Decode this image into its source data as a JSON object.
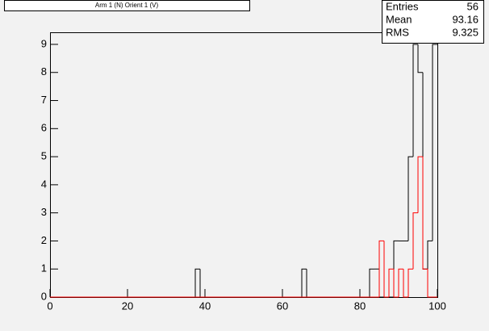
{
  "chart_data": {
    "type": "histogram",
    "title": "Arm 1 (N) Orient 1 (V)",
    "bins": [
      0,
      1.25,
      2.5,
      3.75,
      5,
      6.25,
      7.5,
      8.75,
      10,
      11.25,
      12.5,
      13.75,
      15,
      16.25,
      17.5,
      18.75,
      20,
      21.25,
      22.5,
      23.75,
      25,
      26.25,
      27.5,
      28.75,
      30,
      31.25,
      32.5,
      33.75,
      35,
      36.25,
      37.5,
      38.75,
      40,
      41.25,
      42.5,
      43.75,
      45,
      46.25,
      47.5,
      48.75,
      50,
      51.25,
      52.5,
      53.75,
      55,
      56.25,
      57.5,
      58.75,
      60,
      61.25,
      62.5,
      63.75,
      65,
      66.25,
      67.5,
      68.75,
      70,
      71.25,
      72.5,
      73.75,
      75,
      76.25,
      77.5,
      78.75,
      80,
      81.25,
      82.5,
      83.75,
      85,
      86.25,
      87.5,
      88.75,
      90,
      91.25,
      92.5,
      93.75,
      95,
      96.25,
      97.5,
      98.75,
      100
    ],
    "series": [
      {
        "color": "#000000",
        "values": [
          0,
          0,
          0,
          0,
          0,
          0,
          0,
          0,
          0,
          0,
          0,
          0,
          0,
          0,
          0,
          0,
          0,
          0,
          0,
          0,
          0,
          0,
          0,
          0,
          0,
          0,
          0,
          0,
          0,
          0,
          1,
          0,
          0,
          0,
          0,
          0,
          0,
          0,
          0,
          0,
          0,
          0,
          0,
          0,
          0,
          0,
          0,
          0,
          0,
          0,
          0,
          0,
          1,
          0,
          0,
          0,
          0,
          0,
          0,
          0,
          0,
          0,
          0,
          0,
          0,
          0,
          1,
          1,
          0,
          0,
          0,
          2,
          2,
          2,
          5,
          9,
          8,
          1,
          2,
          9
        ]
      },
      {
        "color": "#ff0000",
        "values": [
          0,
          0,
          0,
          0,
          0,
          0,
          0,
          0,
          0,
          0,
          0,
          0,
          0,
          0,
          0,
          0,
          0,
          0,
          0,
          0,
          0,
          0,
          0,
          0,
          0,
          0,
          0,
          0,
          0,
          0,
          0,
          0,
          0,
          0,
          0,
          0,
          0,
          0,
          0,
          0,
          0,
          0,
          0,
          0,
          0,
          0,
          0,
          0,
          0,
          0,
          0,
          0,
          0,
          0,
          0,
          0,
          0,
          0,
          0,
          0,
          0,
          0,
          0,
          0,
          0,
          0,
          0,
          0,
          2,
          0,
          1,
          0,
          1,
          0,
          1,
          3,
          5,
          1,
          0,
          0
        ]
      }
    ],
    "xlim": [
      0,
      100
    ],
    "ylim": [
      0,
      9.43
    ],
    "xticks": [
      0,
      20,
      40,
      60,
      80,
      100
    ],
    "yticks": [
      0,
      1,
      2,
      3,
      4,
      5,
      6,
      7,
      8,
      9
    ],
    "stats": [
      {
        "label": "Entries",
        "value": 56
      },
      {
        "label": "Mean",
        "value": 93.16
      },
      {
        "label": "RMS",
        "value": 9.325
      }
    ]
  }
}
